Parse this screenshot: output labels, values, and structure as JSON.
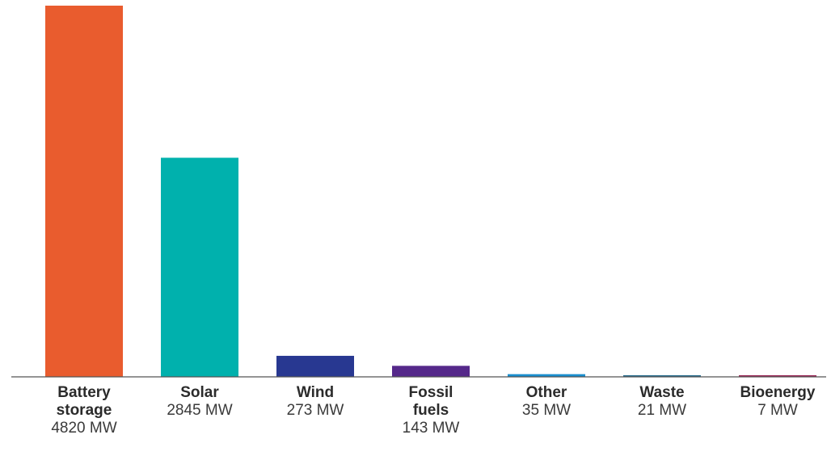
{
  "chart_data": {
    "type": "bar",
    "categories": [
      {
        "name_lines": [
          "Battery",
          "storage"
        ],
        "value_label": "4820 MW",
        "color": "#e95c2e"
      },
      {
        "name_lines": [
          "Solar"
        ],
        "value_label": "2845 MW",
        "color": "#00b1ad"
      },
      {
        "name_lines": [
          "Wind"
        ],
        "value_label": "273 MW",
        "color": "#283891"
      },
      {
        "name_lines": [
          "Fossil",
          "fuels"
        ],
        "value_label": "143 MW",
        "color": "#55288a"
      },
      {
        "name_lines": [
          "Other"
        ],
        "value_label": "35 MW",
        "color": "#1a8fcf"
      },
      {
        "name_lines": [
          "Waste"
        ],
        "value_label": "21 MW",
        "color": "#2b6f8f"
      },
      {
        "name_lines": [
          "Bioenergy"
        ],
        "value_label": "7 MW",
        "color": "#9c2a5a"
      }
    ],
    "values": [
      4820,
      2845,
      273,
      143,
      35,
      21,
      7
    ],
    "unit": "MW",
    "title": "",
    "xlabel": "",
    "ylabel": "",
    "ylim": [
      0,
      4820
    ],
    "grid": false,
    "legend": "none",
    "baseline_color": "#555555"
  }
}
